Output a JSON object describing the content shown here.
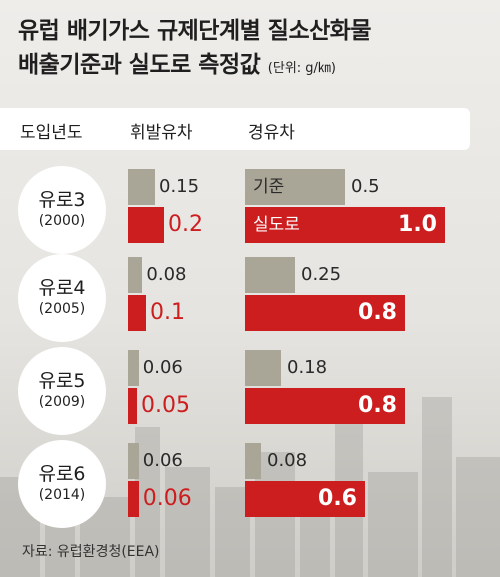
{
  "title": {
    "line1": "유럽 배기가스 규제단계별 질소산화물",
    "line2": "배출기준과 실도로 측정값",
    "unit": "(단위: g/㎞)"
  },
  "header": {
    "col_year": "도입년도",
    "col_gasoline": "휘발유차",
    "col_diesel": "경유차"
  },
  "labels": {
    "standard": "기준",
    "real_road": "실도로"
  },
  "source": "자료: 유럽환경청(EEA)",
  "colors": {
    "standard": "#aaa697",
    "real_road": "#cc1d1f"
  },
  "chart_data": {
    "type": "bar",
    "categories": [
      "유로3",
      "유로4",
      "유로5",
      "유로6"
    ],
    "years": [
      "(2000)",
      "(2005)",
      "(2009)",
      "(2014)"
    ],
    "groups": [
      {
        "name": "휘발유차",
        "series": [
          {
            "name": "기준",
            "values": [
              0.15,
              0.08,
              0.06,
              0.06
            ],
            "labels": [
              "0.15",
              "0.08",
              "0.06",
              "0.06"
            ]
          },
          {
            "name": "실도로",
            "values": [
              0.2,
              0.1,
              0.05,
              0.06
            ],
            "labels": [
              "0.2",
              "0.1",
              "0.05",
              "0.06"
            ]
          }
        ]
      },
      {
        "name": "경유차",
        "series": [
          {
            "name": "기준",
            "values": [
              0.5,
              0.25,
              0.18,
              0.08
            ],
            "labels": [
              "0.5",
              "0.25",
              "0.18",
              "0.08"
            ]
          },
          {
            "name": "실도로",
            "values": [
              1.0,
              0.8,
              0.8,
              0.6
            ],
            "labels": [
              "1.0",
              "0.8",
              "0.8",
              "0.6"
            ]
          }
        ]
      }
    ]
  }
}
